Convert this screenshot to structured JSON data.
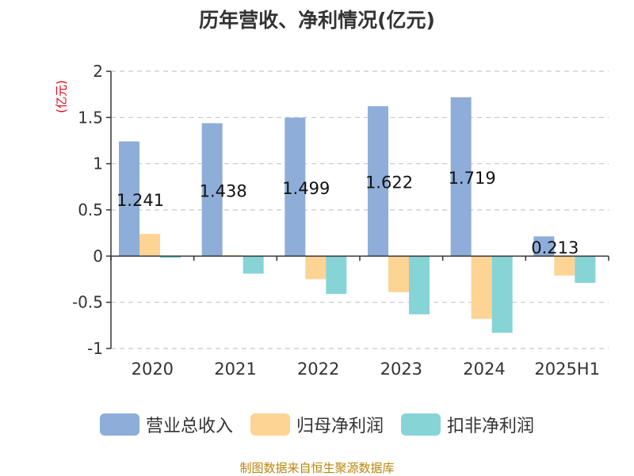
{
  "title": "历年营收、净利情况(亿元)",
  "unit_label": "(亿元)",
  "source": "制图数据来自恒生聚源数据库",
  "colors": {
    "revenue": "#8eadd8",
    "net_profit": "#fdd494",
    "deducted_profit": "#86d4d6",
    "unit_text": "#e60012",
    "source_text": "#b8860b"
  },
  "chart_data": {
    "type": "bar",
    "categories": [
      "2020",
      "2021",
      "2022",
      "2023",
      "2024",
      "2025H1"
    ],
    "series": [
      {
        "name": "营业总收入",
        "values": [
          1.241,
          1.438,
          1.499,
          1.622,
          1.719,
          0.213
        ],
        "show_labels": true
      },
      {
        "name": "归母净利润",
        "values": [
          0.24,
          0.01,
          -0.25,
          -0.39,
          -0.68,
          -0.21
        ],
        "show_labels": false
      },
      {
        "name": "扣非净利润",
        "values": [
          -0.02,
          -0.19,
          -0.41,
          -0.63,
          -0.83,
          -0.29
        ],
        "show_labels": false
      }
    ],
    "ylim": [
      -1,
      2
    ],
    "yticks": [
      2,
      1.5,
      1,
      0.5,
      0,
      -0.5,
      -1
    ],
    "ytick_labels": [
      "2",
      "1.5",
      "1",
      "0.5",
      "0",
      "-0.5",
      "-1"
    ],
    "grid": true,
    "legend_position": "bottom"
  }
}
